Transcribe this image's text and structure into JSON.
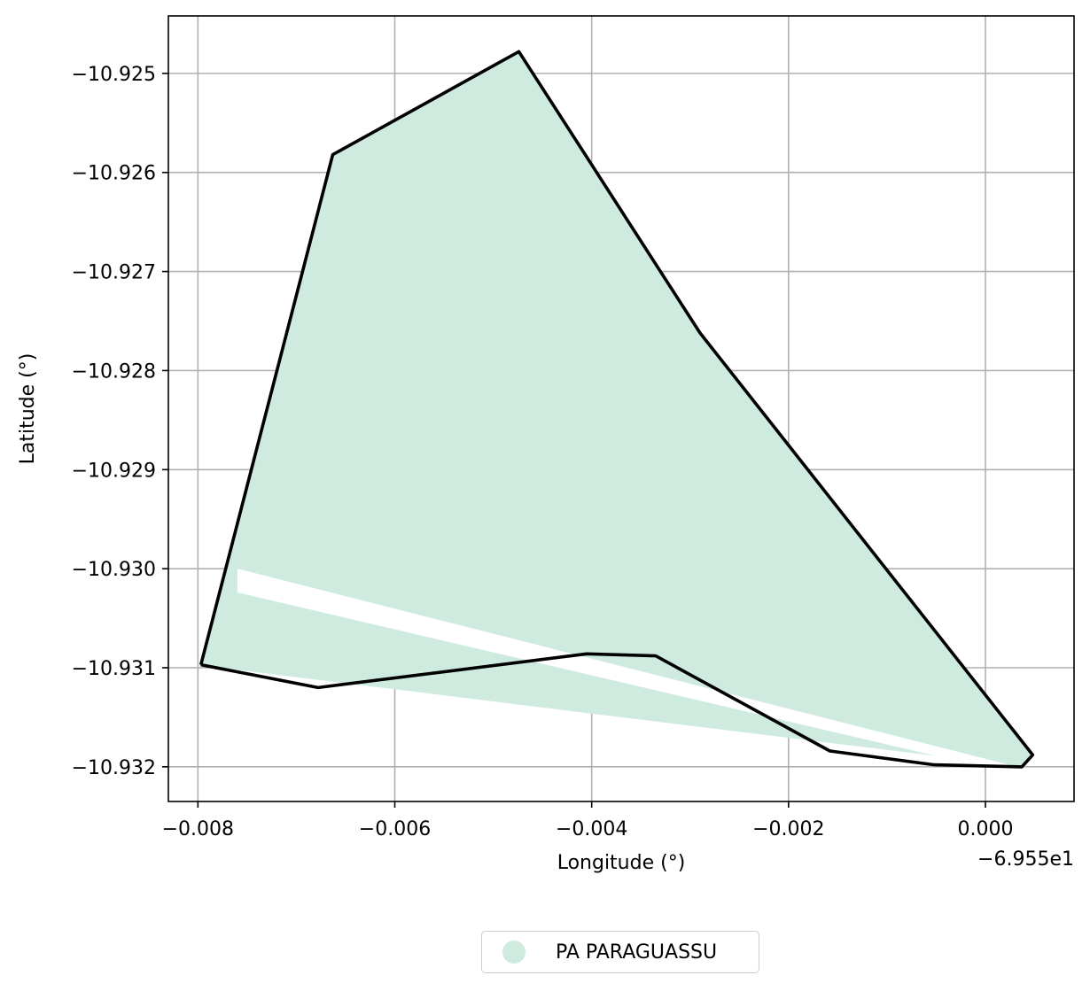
{
  "chart_data": {
    "type": "map",
    "xlabel": "Longitude (°)",
    "ylabel": "Latitude (°)",
    "x_offset_label": "−6.955e1",
    "xlim": [
      -69.5583,
      -69.5491
    ],
    "ylim": [
      -10.93235,
      -10.92442
    ],
    "x_ticks": [
      {
        "value": -69.558,
        "label": "−0.008"
      },
      {
        "value": -69.556,
        "label": "−0.006"
      },
      {
        "value": -69.554,
        "label": "−0.004"
      },
      {
        "value": -69.552,
        "label": "−0.002"
      },
      {
        "value": -69.55,
        "label": "0.000"
      }
    ],
    "y_ticks": [
      {
        "value": -10.925,
        "label": "−10.925"
      },
      {
        "value": -10.926,
        "label": "−10.926"
      },
      {
        "value": -10.927,
        "label": "−10.927"
      },
      {
        "value": -10.928,
        "label": "−10.928"
      },
      {
        "value": -10.929,
        "label": "−10.929"
      },
      {
        "value": -10.93,
        "label": "−10.930"
      },
      {
        "value": -10.931,
        "label": "−10.931"
      },
      {
        "value": -10.932,
        "label": "−10.932"
      }
    ],
    "grid": true,
    "legend_position": "bottom-center",
    "colors": {
      "fill": "#cfebdf",
      "outline": "#000000",
      "gap": "#ffffff",
      "grid": "#b0b0b0"
    },
    "fill_polygon": [
      [
        -69.55797,
        -10.93097
      ],
      [
        -69.55663,
        -10.92582
      ],
      [
        -69.55474,
        -10.92478
      ],
      [
        -69.5529,
        -10.92762
      ],
      [
        -69.54952,
        -10.93188
      ],
      [
        -69.5496,
        -10.932
      ],
      [
        -69.55803,
        -10.93097
      ]
    ],
    "gap_band": [
      [
        -69.5576,
        -10.93
      ],
      [
        -69.5496,
        -10.93202
      ],
      [
        -69.5496,
        -10.9321
      ],
      [
        -69.5576,
        -10.93024
      ]
    ],
    "outline": [
      [
        -69.55797,
        -10.93097
      ],
      [
        -69.55663,
        -10.92582
      ],
      [
        -69.55474,
        -10.92478
      ],
      [
        -69.5529,
        -10.92762
      ],
      [
        -69.54952,
        -10.93188
      ],
      [
        -69.54963,
        -10.932
      ],
      [
        -69.55052,
        -10.93198
      ],
      [
        -69.55158,
        -10.93184
      ],
      [
        -69.55335,
        -10.93088
      ],
      [
        -69.55405,
        -10.93086
      ],
      [
        -69.55678,
        -10.9312
      ],
      [
        -69.55797,
        -10.93097
      ]
    ],
    "series": [
      {
        "name": "PA PARAGUASSU",
        "color": "#cfebdf"
      }
    ]
  }
}
